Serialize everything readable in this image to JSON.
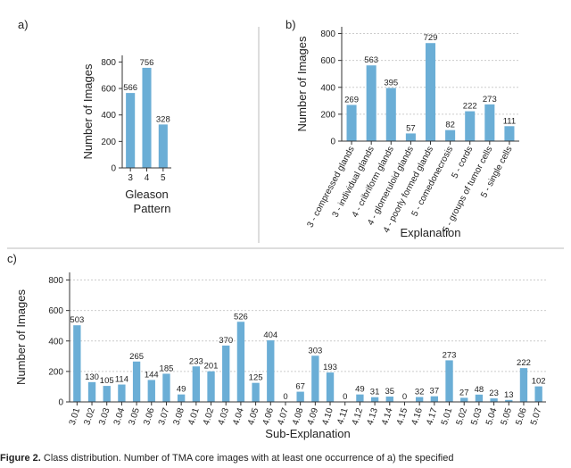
{
  "chart_data": [
    {
      "type": "bar",
      "panel_label": "a)",
      "ylabel": "Number of Images",
      "xlabel": [
        "Gleason",
        "Pattern"
      ],
      "categories": [
        "3",
        "4",
        "5"
      ],
      "values": [
        566,
        756,
        328
      ],
      "color": "#6baed6",
      "ylim": [
        0,
        850
      ],
      "yticks": [
        0,
        200,
        400,
        600,
        800
      ],
      "grid": false
    },
    {
      "type": "bar",
      "panel_label": "b)",
      "ylabel": "Number of Images",
      "xlabel": [
        "Explanation"
      ],
      "categories": [
        "3 - compressed glands",
        "3 - individual glands",
        "4 - cribriform glands",
        "4 - glomeruloid glands",
        "4 - poorly formed glands",
        "5 - comedonecrosis",
        "5 - cords",
        "5 - groups of tumor cells",
        "5 - single cells"
      ],
      "values": [
        269,
        563,
        395,
        57,
        729,
        82,
        222,
        273,
        111
      ],
      "color": "#6baed6",
      "ylim": [
        0,
        850
      ],
      "yticks": [
        0,
        200,
        400,
        600,
        800
      ],
      "grid": true
    },
    {
      "type": "bar",
      "panel_label": "c)",
      "ylabel": "Number of Images",
      "xlabel": [
        "Sub-Explanation"
      ],
      "categories": [
        "3.01",
        "3.02",
        "3.03",
        "3.04",
        "3.05",
        "3.06",
        "3.07",
        "3.08",
        "4.01",
        "4.02",
        "4.03",
        "4.04",
        "4.05",
        "4.06",
        "4.07",
        "4.08",
        "4.09",
        "4.10",
        "4.11",
        "4.12",
        "4.13",
        "4.14",
        "4.15",
        "4.16",
        "4.17",
        "5.01",
        "5.02",
        "5.03",
        "5.04",
        "5.05",
        "5.06",
        "5.07"
      ],
      "values": [
        503,
        130,
        105,
        114,
        265,
        144,
        185,
        49,
        233,
        201,
        370,
        526,
        125,
        404,
        0,
        67,
        303,
        193,
        0,
        49,
        31,
        35,
        0,
        32,
        37,
        273,
        27,
        48,
        23,
        13,
        222,
        102
      ],
      "color": "#6baed6",
      "ylim": [
        0,
        850
      ],
      "yticks": [
        0,
        200,
        400,
        600,
        800
      ],
      "grid": true
    }
  ],
  "caption": {
    "label": "Figure 2.",
    "text": "Class distribution. Number of TMA core images with at least one occurrence of a) the specified"
  }
}
